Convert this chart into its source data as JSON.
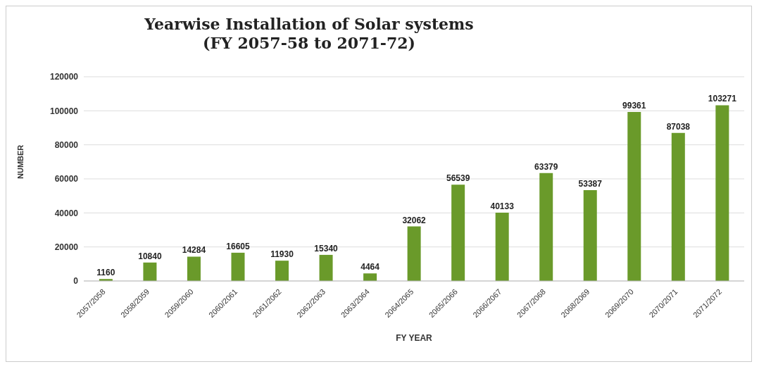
{
  "chart_data": {
    "type": "bar",
    "title": "Yearwise Installation of Solar systems\n(FY 2057-58 to 2071-72)",
    "xlabel": "FY YEAR",
    "ylabel": "NUMBER",
    "categories": [
      "2057/2058",
      "2058/2059",
      "2059/2060",
      "2060/2061",
      "2061/2062",
      "2062/2063",
      "2063/2064",
      "2064/2065",
      "2065/2066",
      "2066/2067",
      "2067/2068",
      "2068/2069",
      "2069/2070",
      "2070/2071",
      "2071/2072"
    ],
    "values": [
      1160,
      10840,
      14284,
      16605,
      11930,
      15340,
      4464,
      32062,
      56539,
      40133,
      63379,
      53387,
      99361,
      87038,
      103271
    ],
    "color": "#6a9a2a",
    "ylim": [
      0,
      120000
    ],
    "yticks": [
      0,
      20000,
      40000,
      60000,
      80000,
      100000,
      120000
    ],
    "grid": "y",
    "data_labels": true
  }
}
